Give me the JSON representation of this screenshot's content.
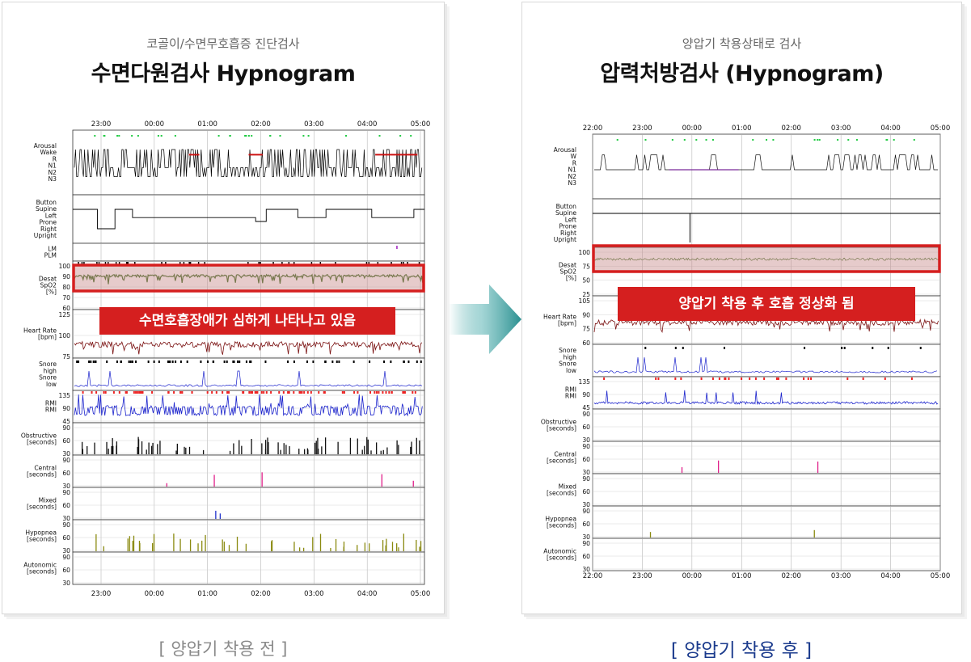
{
  "left": {
    "subtitle": "코골이/수면무호흡증 진단검사",
    "title": "수면다원검사 Hypnogram",
    "banner": "수면호흡장애가 심하게 나타나고 있음",
    "caption": "[ 양압기 착용 전 ]",
    "time_ticks": [
      "23:00",
      "00:00",
      "01:00",
      "02:00",
      "03:00",
      "04:00",
      "05:00"
    ],
    "channels": [
      {
        "id": "stage",
        "labels": [
          "Arousal",
          "Wake",
          "R",
          "N1",
          "N2",
          "N3"
        ]
      },
      {
        "id": "position",
        "labels": [
          "Button",
          "Supine",
          "Left",
          "Prone",
          "Right",
          "Upright"
        ]
      },
      {
        "id": "lm",
        "labels": [
          "LM",
          "PLM"
        ]
      },
      {
        "id": "spo2",
        "labels": [
          "Desat",
          "SpO2",
          "[%]"
        ],
        "ticks": [
          "100",
          "90",
          "80",
          "70",
          "60"
        ]
      },
      {
        "id": "hr",
        "labels": [
          "Heart Rate",
          "[bpm]"
        ],
        "ticks": [
          "125",
          "100",
          "75"
        ]
      },
      {
        "id": "snore",
        "labels": [
          "Snore",
          "high",
          "Snore",
          "low"
        ]
      },
      {
        "id": "rmi",
        "labels": [
          "RMI",
          "RMI"
        ],
        "ticks": [
          "135",
          "90",
          "45"
        ]
      },
      {
        "id": "obstructive",
        "labels": [
          "Obstructive",
          "[seconds]"
        ],
        "ticks": [
          "90",
          "60",
          "30"
        ]
      },
      {
        "id": "central",
        "labels": [
          "Central",
          "[seconds]"
        ],
        "ticks": [
          "90",
          "60",
          "30"
        ]
      },
      {
        "id": "mixed",
        "labels": [
          "Mixed",
          "[seconds]"
        ],
        "ticks": [
          "90",
          "60",
          "30"
        ]
      },
      {
        "id": "hypopnea",
        "labels": [
          "Hypopnea",
          "[seconds]"
        ],
        "ticks": [
          "90",
          "60",
          "30"
        ]
      },
      {
        "id": "autonomic",
        "labels": [
          "Autonomic",
          "[seconds]"
        ],
        "ticks": [
          "90",
          "60",
          "30"
        ]
      }
    ]
  },
  "right": {
    "subtitle": "양압기 착용상태로 검사",
    "title": "압력처방검사 (Hypnogram)",
    "banner": "양압기 착용 후 호흡 정상화 됨",
    "caption": "[ 양압기 착용 후 ]",
    "time_ticks": [
      "22:00",
      "23:00",
      "00:00",
      "01:00",
      "02:00",
      "03:00",
      "04:00",
      "05:00"
    ],
    "channels": [
      {
        "id": "stage",
        "labels": [
          "Arousal",
          "W",
          "R",
          "N1",
          "N2",
          "N3"
        ]
      },
      {
        "id": "position",
        "labels": [
          "Button",
          "Supine",
          "Left",
          "Prone",
          "Right",
          "Upright"
        ]
      },
      {
        "id": "spo2",
        "labels": [
          "Desat",
          "SpO2",
          "[%]"
        ],
        "ticks": [
          "100",
          "75",
          "50",
          "25"
        ]
      },
      {
        "id": "hr",
        "labels": [
          "Heart Rate",
          "[bpm]"
        ],
        "ticks": [
          "105",
          "90",
          "75",
          "60"
        ]
      },
      {
        "id": "snore",
        "labels": [
          "Snore",
          "high",
          "Snore",
          "low"
        ]
      },
      {
        "id": "rmi",
        "labels": [
          "RMI",
          "RMI"
        ],
        "ticks": [
          "135",
          "90",
          "45"
        ]
      },
      {
        "id": "obstructive",
        "labels": [
          "Obstructive",
          "[seconds]"
        ],
        "ticks": [
          "90",
          "60",
          "30"
        ]
      },
      {
        "id": "central",
        "labels": [
          "Central",
          "[seconds]"
        ],
        "ticks": [
          "90",
          "60",
          "30"
        ]
      },
      {
        "id": "mixed",
        "labels": [
          "Mixed",
          "[seconds]"
        ],
        "ticks": [
          "90",
          "60",
          "30"
        ]
      },
      {
        "id": "hypopnea",
        "labels": [
          "Hypopnea",
          "[seconds]"
        ],
        "ticks": [
          "90",
          "60",
          "30"
        ]
      },
      {
        "id": "autonomic",
        "labels": [
          "Autonomic",
          "[seconds]"
        ],
        "ticks": [
          "90",
          "60",
          "30"
        ]
      }
    ]
  },
  "colors": {
    "highlight_border": "#d51f1f",
    "banner_bg": "#d51f1f",
    "arrow": "#2f9c9c",
    "caption_before": "#8a8a8a",
    "caption_after": "#1a3a8c",
    "spo2_trace": "#3a6b1e",
    "hr_trace": "#7a1010",
    "rmi_trace": "#1a22cc",
    "arousal": "#22cc44",
    "rmi_marks": "#ee2222",
    "hypopnea_bars": "#8a8a10",
    "stage_red": "#cc1111",
    "stage_purple": "#7a2a9a"
  }
}
